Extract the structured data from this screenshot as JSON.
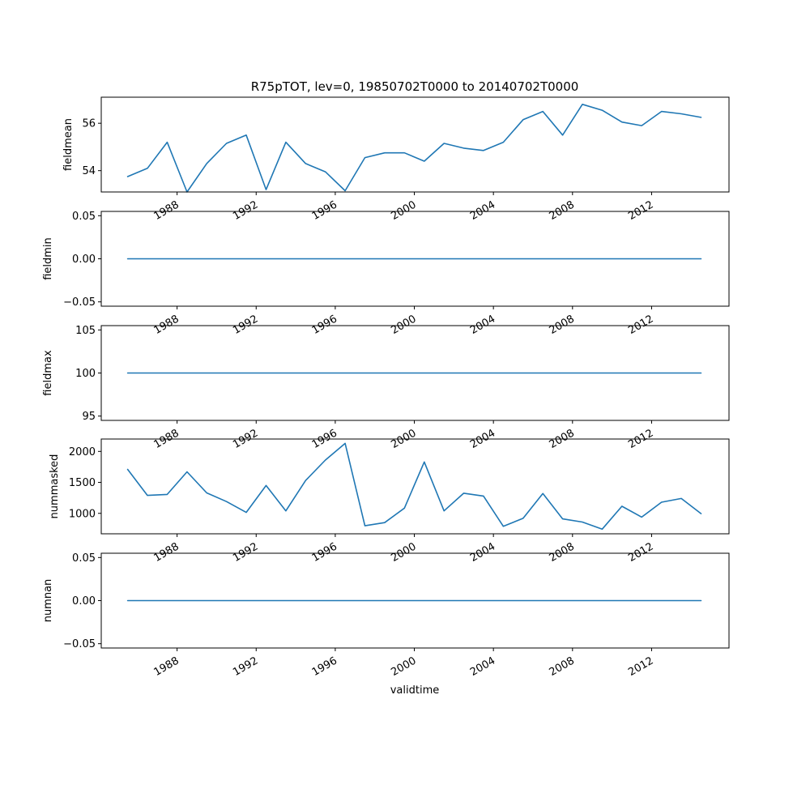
{
  "chart_data": {
    "type": "line",
    "title": "R75pTOT, lev=0, 19850702T0000 to 20140702T0000",
    "xlabel": "validtime",
    "line_color": "#1f77b4",
    "grid": false,
    "x_ticks": [
      "1988",
      "1992",
      "1996",
      "2000",
      "2004",
      "2008",
      "2012"
    ],
    "x": [
      "1985-07-02",
      "1986-07-02",
      "1987-07-02",
      "1988-07-02",
      "1989-07-02",
      "1990-07-02",
      "1991-07-02",
      "1992-07-02",
      "1993-07-02",
      "1994-07-02",
      "1995-07-02",
      "1996-07-02",
      "1997-07-02",
      "1998-07-02",
      "1999-07-02",
      "2000-07-02",
      "2001-07-02",
      "2002-07-02",
      "2003-07-02",
      "2004-07-02",
      "2005-07-02",
      "2006-07-02",
      "2007-07-02",
      "2008-07-02",
      "2009-07-02",
      "2010-07-02",
      "2011-07-02",
      "2012-07-02",
      "2013-07-02",
      "2014-07-02"
    ],
    "panels": [
      {
        "ylabel": "fieldmean",
        "ylim": [
          53.1,
          57.1
        ],
        "yticks": [
          "54",
          "56"
        ],
        "values": [
          53.75,
          54.1,
          55.2,
          53.1,
          54.3,
          55.15,
          55.5,
          53.2,
          55.2,
          54.3,
          53.95,
          53.15,
          54.55,
          54.75,
          54.75,
          54.4,
          55.15,
          54.95,
          54.85,
          55.2,
          56.15,
          56.5,
          55.5,
          56.8,
          56.55,
          56.05,
          55.9,
          56.5,
          56.4,
          56.25
        ]
      },
      {
        "ylabel": "fieldmin",
        "ylim": [
          -0.055,
          0.055
        ],
        "yticks": [
          "0.05",
          "0.00",
          "−0.05"
        ],
        "values": [
          0,
          0,
          0,
          0,
          0,
          0,
          0,
          0,
          0,
          0,
          0,
          0,
          0,
          0,
          0,
          0,
          0,
          0,
          0,
          0,
          0,
          0,
          0,
          0,
          0,
          0,
          0,
          0,
          0,
          0
        ]
      },
      {
        "ylabel": "fieldmax",
        "ylim": [
          94.5,
          105.5
        ],
        "yticks": [
          "105",
          "100",
          "95"
        ],
        "values": [
          100,
          100,
          100,
          100,
          100,
          100,
          100,
          100,
          100,
          100,
          100,
          100,
          100,
          100,
          100,
          100,
          100,
          100,
          100,
          100,
          100,
          100,
          100,
          100,
          100,
          100,
          100,
          100,
          100,
          100
        ]
      },
      {
        "ylabel": "nummasked",
        "ylim": [
          670,
          2200
        ],
        "yticks": [
          "2000",
          "1500",
          "1000"
        ],
        "values": [
          1710,
          1290,
          1305,
          1670,
          1330,
          1190,
          1015,
          1450,
          1040,
          1530,
          1860,
          2130,
          800,
          850,
          1085,
          1830,
          1040,
          1325,
          1280,
          790,
          920,
          1320,
          910,
          860,
          745,
          1115,
          940,
          1180,
          1240,
          995
        ]
      },
      {
        "ylabel": "numnan",
        "ylim": [
          -0.055,
          0.055
        ],
        "yticks": [
          "0.05",
          "0.00",
          "−0.05"
        ],
        "values": [
          0,
          0,
          0,
          0,
          0,
          0,
          0,
          0,
          0,
          0,
          0,
          0,
          0,
          0,
          0,
          0,
          0,
          0,
          0,
          0,
          0,
          0,
          0,
          0,
          0,
          0,
          0,
          0,
          0,
          0
        ]
      }
    ]
  }
}
